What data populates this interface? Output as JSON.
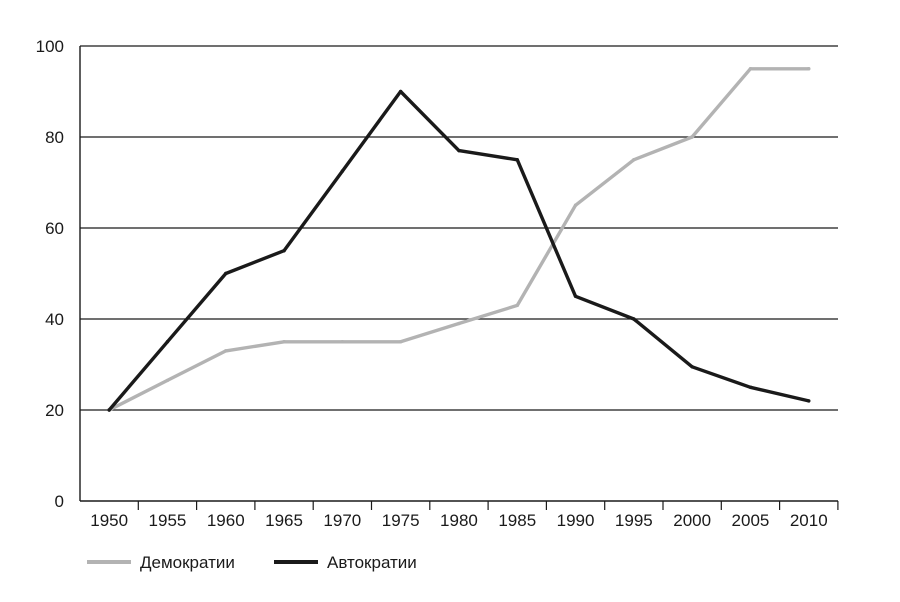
{
  "chart_data": {
    "type": "line",
    "title": "",
    "xlabel": "",
    "ylabel": "",
    "x": [
      1950,
      1955,
      1960,
      1965,
      1970,
      1975,
      1980,
      1985,
      1990,
      1995,
      2000,
      2005,
      2010
    ],
    "x_tick_labels": [
      "1950",
      "1955",
      "1960",
      "1965",
      "1970",
      "1975",
      "1980",
      "1985",
      "1990",
      "1995",
      "2000",
      "2005",
      "2010"
    ],
    "ylim": [
      0,
      100
    ],
    "y_ticks": [
      0,
      20,
      40,
      60,
      80,
      100
    ],
    "grid": "horizontal",
    "legend_position": "bottom-left",
    "series": [
      {
        "name": "Демократии",
        "color": "#b3b3b3",
        "points": [
          [
            1950,
            20
          ],
          [
            1955,
            26.5
          ],
          [
            1960,
            33
          ],
          [
            1965,
            35
          ],
          [
            1970,
            35
          ],
          [
            1975,
            35
          ],
          [
            1980,
            39
          ],
          [
            1985,
            43
          ],
          [
            1990,
            65
          ],
          [
            1995,
            75
          ],
          [
            2000,
            80
          ],
          [
            2005,
            95
          ],
          [
            2010,
            95
          ]
        ]
      },
      {
        "name": "Автократии",
        "color": "#1a1a1a",
        "points": [
          [
            1950,
            20
          ],
          [
            1955,
            35
          ],
          [
            1960,
            50
          ],
          [
            1965,
            55
          ],
          [
            1970,
            72.5
          ],
          [
            1975,
            90
          ],
          [
            1980,
            77
          ],
          [
            1985,
            75
          ],
          [
            1990,
            45
          ],
          [
            1995,
            40
          ],
          [
            2000,
            29.5
          ],
          [
            2005,
            25
          ],
          [
            2010,
            22
          ]
        ]
      }
    ]
  }
}
